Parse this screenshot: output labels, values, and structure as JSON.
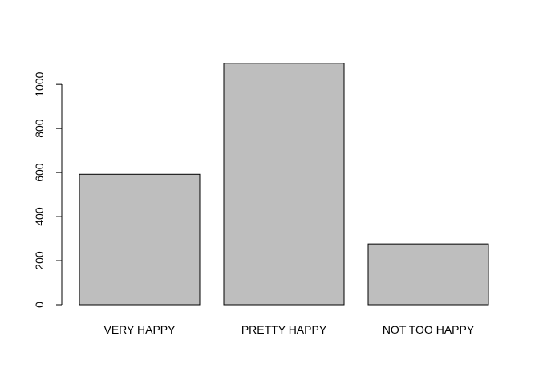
{
  "chart_data": {
    "type": "bar",
    "categories": [
      "VERY HAPPY",
      "PRETTY HAPPY",
      "NOT TOO HAPPY"
    ],
    "values": [
      592,
      1096,
      276
    ],
    "title": "",
    "xlabel": "",
    "ylabel": "",
    "ylim": [
      0,
      1096
    ],
    "yticks": [
      "0",
      "200",
      "400",
      "600",
      "800",
      "1000"
    ],
    "grid": false,
    "bar_fill": "#bebebe",
    "bar_stroke": "#000000"
  }
}
